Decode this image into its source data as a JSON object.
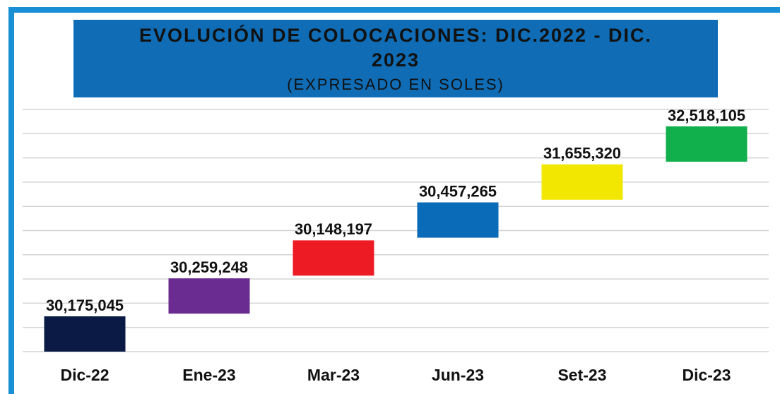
{
  "chart_data": {
    "type": "bar",
    "title": "EVOLUCIÓN DE COLOCACIONES:  DIC.2022 - DIC.",
    "title_line2": "2023",
    "subtitle": "(EXPRESADO  EN SOLES)",
    "categories": [
      "Dic-22",
      "Ene-23",
      "Mar-23",
      "Jun-23",
      "Set-23",
      "Dic-23"
    ],
    "values": [
      30175045,
      30259248,
      30148197,
      30457265,
      31655320,
      32518105
    ],
    "value_labels": [
      "30,175,045",
      "30,259,248",
      "30,148,197",
      "30,457,265",
      "31,655,320",
      "32,518,105"
    ],
    "colors": [
      "#0b1a44",
      "#6a2c91",
      "#ed1c24",
      "#0a6bb8",
      "#f2e700",
      "#12b04c"
    ],
    "grid": true
  }
}
